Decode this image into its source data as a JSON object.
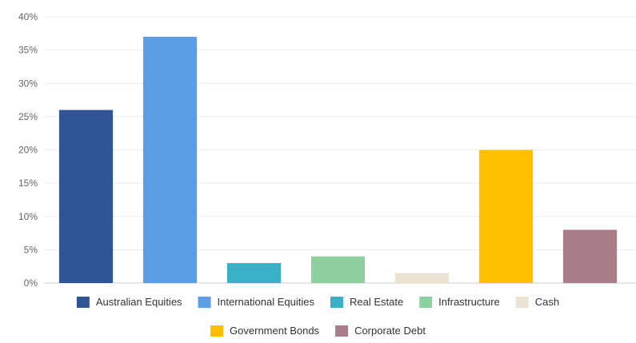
{
  "chart_data": {
    "type": "bar",
    "title": "",
    "xlabel": "",
    "ylabel": "",
    "ylim": [
      0,
      40
    ],
    "yticks": [
      "0%",
      "5%",
      "10%",
      "15%",
      "20%",
      "25%",
      "30%",
      "35%",
      "40%"
    ],
    "grid": true,
    "legend_position": "bottom",
    "categories": [
      "Australian Equities",
      "International Equities",
      "Real Estate",
      "Infrastructure",
      "Cash",
      "Government Bonds",
      "Corporate Debt"
    ],
    "values": [
      26,
      37,
      3,
      4,
      1.5,
      20,
      8
    ],
    "colors": [
      "#2f5597",
      "#5b9ee6",
      "#39b0c6",
      "#8fd19e",
      "#ede3d4",
      "#ffc000",
      "#a87d89"
    ]
  }
}
